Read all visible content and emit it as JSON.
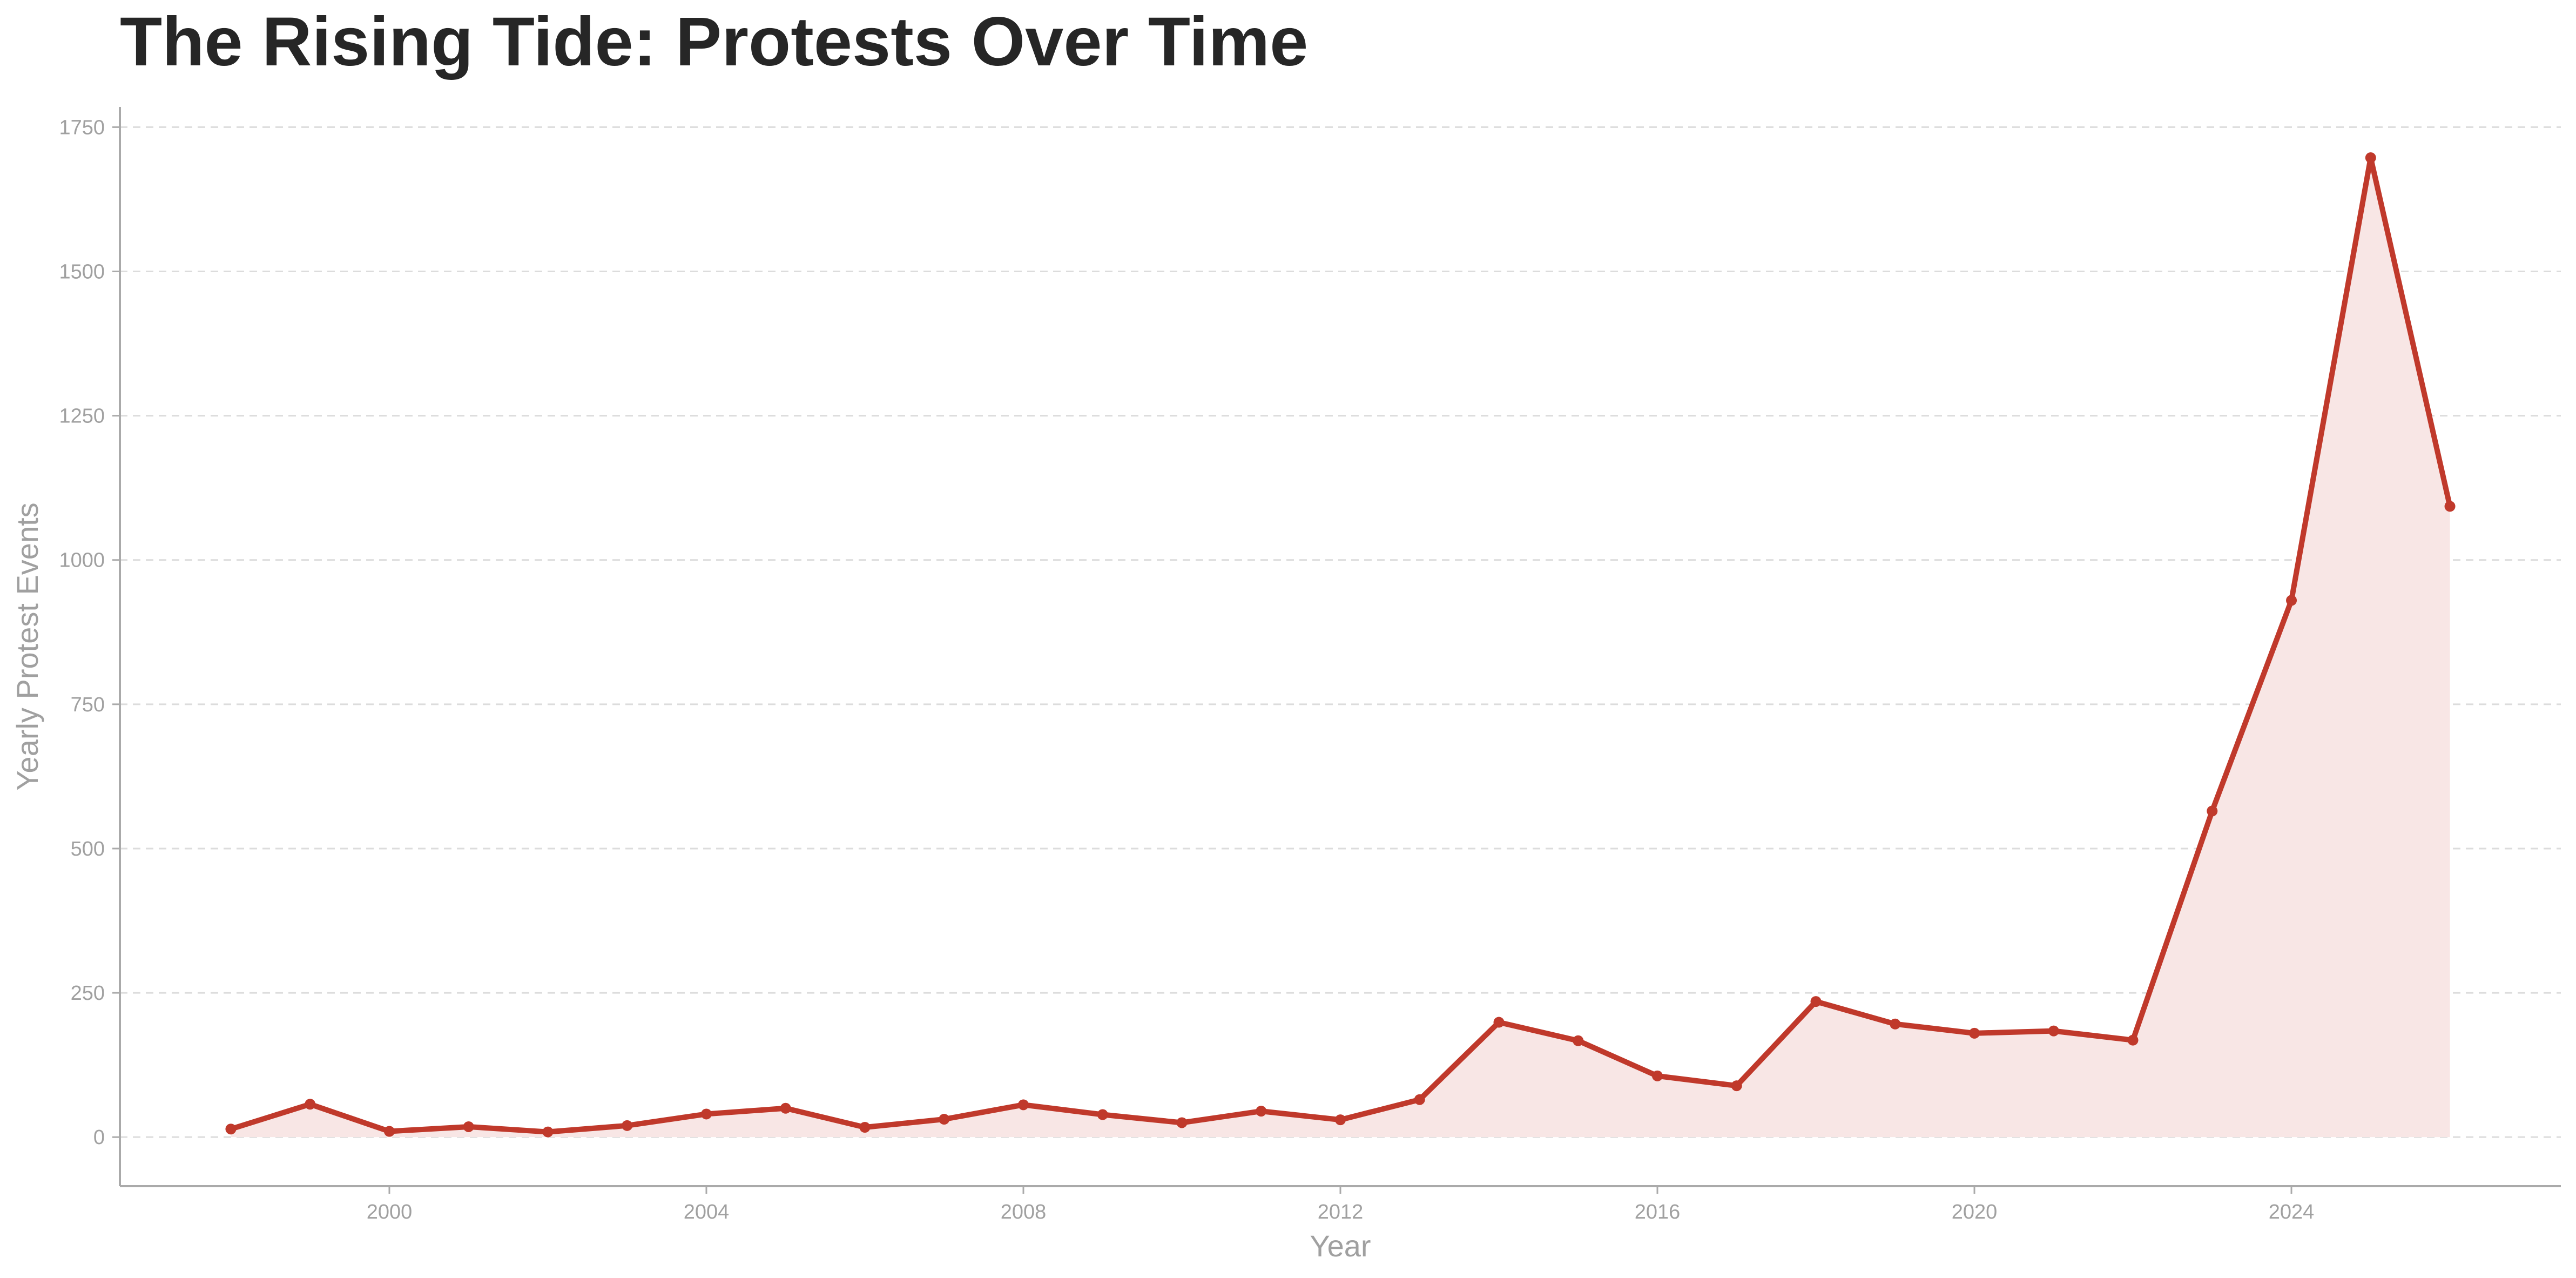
{
  "chart_data": {
    "type": "line",
    "title": "The Rising Tide: Protests Over Time",
    "xlabel": "Year",
    "ylabel": "Yearly Protest Events",
    "xlim": [
      1996.6,
      2027.4
    ],
    "ylim": [
      -85,
      1785
    ],
    "x_ticks": [
      2000,
      2004,
      2008,
      2012,
      2016,
      2020,
      2024
    ],
    "y_ticks": [
      0,
      250,
      500,
      750,
      1000,
      1250,
      1500,
      1750
    ],
    "grid": "horizontal dashed",
    "area_fill": true,
    "series": [
      {
        "x": [
          1998,
          1999,
          2000,
          2001,
          2002,
          2003,
          2004,
          2005,
          2006,
          2007,
          2008,
          2009,
          2010,
          2011,
          2012,
          2013,
          2014,
          2015,
          2016,
          2017,
          2018,
          2019,
          2020,
          2021,
          2022,
          2023,
          2024,
          2025,
          2026
        ],
        "values": [
          14,
          57,
          10,
          18,
          9,
          20,
          40,
          50,
          17,
          31,
          56,
          39,
          25,
          45,
          30,
          65,
          199,
          167,
          106,
          89,
          235,
          196,
          180,
          184,
          168,
          565,
          930,
          1697,
          1093
        ]
      }
    ],
    "colors": {
      "line": "#c0392b",
      "fill": "#f8e6e5",
      "grid": "#dcdcdc",
      "axis": "#aaaaaa",
      "text": "#a0a0a0",
      "title": "#262626"
    }
  }
}
